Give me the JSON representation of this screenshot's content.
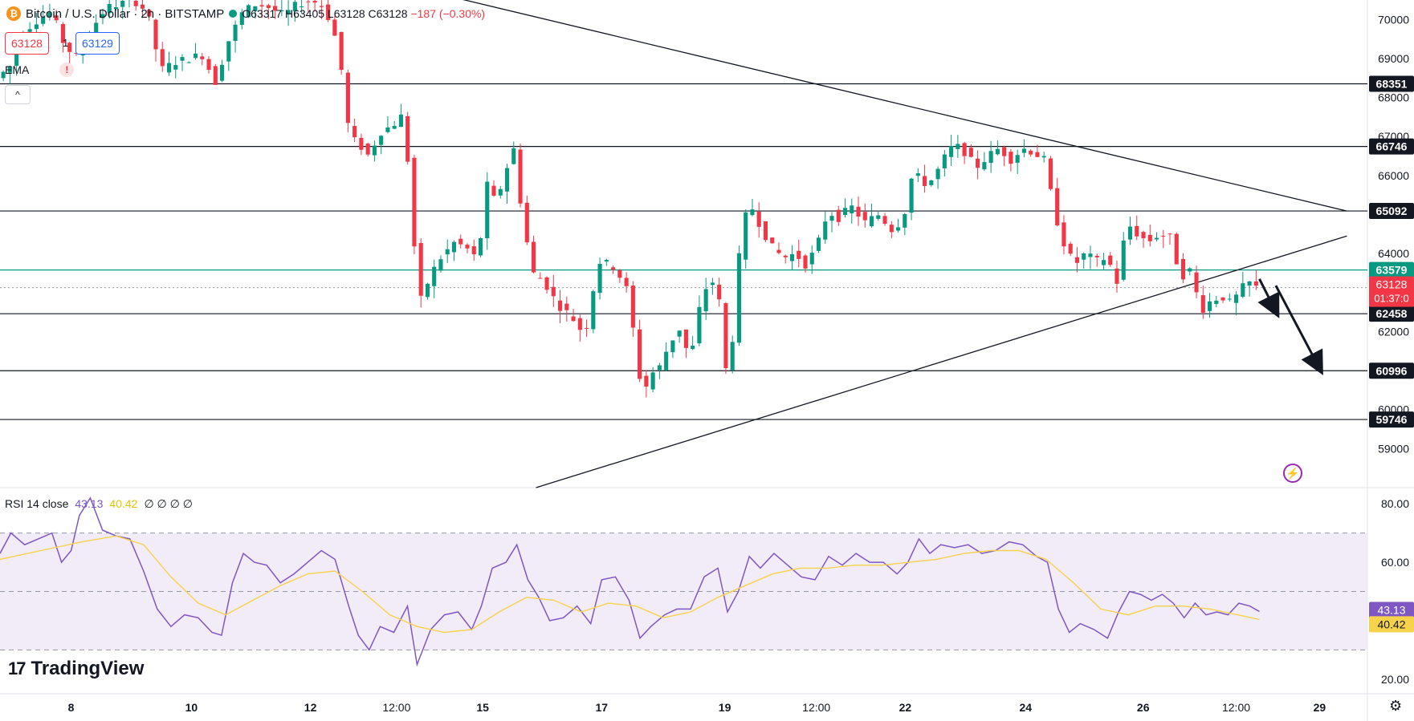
{
  "header": {
    "coin_icon": "bitcoin-icon",
    "title": "Bitcoin / U.S. Dollar · 2h · BITSTAMP",
    "ohlc": "O63317 H63405 L63128 C63128",
    "change": "−187 (−0.30%)",
    "sell_price": "63128",
    "spread": "1",
    "buy_price": "63129",
    "ema_label": "EMA",
    "warning_icon": "!",
    "collapse_icon": "^"
  },
  "rsi_legend": {
    "label": "RSI 14 close",
    "rsi": "43.13",
    "ma": "40.42",
    "extra": "∅ ∅ ∅ ∅"
  },
  "branding": {
    "logo_text": "TradingView",
    "logo_mark": "17"
  },
  "colors": {
    "up": "#089981",
    "down": "#f23645",
    "rsi": "#7e57c2",
    "rsi_ma": "#f7d24b",
    "rsi_band": "#ede7f6"
  },
  "chart_data": [
    {
      "type": "candlestick",
      "title": "Bitcoin / U.S. Dollar · 2h · BITSTAMP",
      "ylim": [
        58000,
        70500
      ],
      "y_ticks": [
        59000,
        60000,
        62000,
        64000,
        66000,
        67000,
        68000,
        69000,
        70000
      ],
      "x_ticks": [
        "8",
        "10",
        "12",
        "12:00",
        "15",
        "17",
        "19",
        "12:00",
        "22",
        "24",
        "26",
        "12:00",
        "29"
      ],
      "horizontal_levels": [
        {
          "value": 68351,
          "label": "68351"
        },
        {
          "value": 66746,
          "label": "66746"
        },
        {
          "value": 65092,
          "label": "65092"
        },
        {
          "value": 63579,
          "label": "63579",
          "color": "#089981"
        },
        {
          "value": 62458,
          "label": "62458"
        },
        {
          "value": 60996,
          "label": "60996"
        },
        {
          "value": 59746,
          "label": "59746"
        }
      ],
      "current_price": {
        "value": 63128,
        "label": "63128",
        "countdown": "01:37:0"
      },
      "trendlines": [
        {
          "name": "descending resistance",
          "from": [
            0.328,
            70600
          ],
          "to": [
            0.985,
            65090
          ]
        },
        {
          "name": "ascending support",
          "from": [
            0.392,
            58000
          ],
          "to": [
            0.985,
            64450
          ]
        }
      ],
      "arrows": [
        {
          "from": [
            0.921,
            63350
          ],
          "to": [
            0.934,
            62450
          ]
        },
        {
          "from": [
            0.933,
            63180
          ],
          "to": [
            0.966,
            60990
          ]
        }
      ],
      "price_path": [
        [
          0.0,
          68500
        ],
        [
          0.01,
          68800
        ],
        [
          0.02,
          69700
        ],
        [
          0.03,
          70000
        ],
        [
          0.04,
          70200
        ],
        [
          0.05,
          69300
        ],
        [
          0.06,
          69000
        ],
        [
          0.07,
          69800
        ],
        [
          0.08,
          70300
        ],
        [
          0.09,
          70400
        ],
        [
          0.1,
          70500
        ],
        [
          0.11,
          70200
        ],
        [
          0.12,
          68700
        ],
        [
          0.13,
          68900
        ],
        [
          0.14,
          69000
        ],
        [
          0.15,
          69100
        ],
        [
          0.16,
          68400
        ],
        [
          0.17,
          69500
        ],
        [
          0.18,
          70200
        ],
        [
          0.19,
          70400
        ],
        [
          0.2,
          70300
        ],
        [
          0.21,
          70100
        ],
        [
          0.22,
          70400
        ],
        [
          0.23,
          70500
        ],
        [
          0.24,
          70300
        ],
        [
          0.25,
          69300
        ],
        [
          0.258,
          67000
        ],
        [
          0.265,
          66800
        ],
        [
          0.272,
          66500
        ],
        [
          0.28,
          67100
        ],
        [
          0.29,
          67300
        ],
        [
          0.298,
          67600
        ],
        [
          0.305,
          64300
        ],
        [
          0.31,
          62800
        ],
        [
          0.318,
          63500
        ],
        [
          0.325,
          63900
        ],
        [
          0.335,
          64300
        ],
        [
          0.345,
          64100
        ],
        [
          0.352,
          63800
        ],
        [
          0.358,
          65800
        ],
        [
          0.365,
          65300
        ],
        [
          0.372,
          66100
        ],
        [
          0.378,
          66700
        ],
        [
          0.385,
          64800
        ],
        [
          0.392,
          63500
        ],
        [
          0.4,
          63300
        ],
        [
          0.41,
          62700
        ],
        [
          0.42,
          62400
        ],
        [
          0.43,
          61900
        ],
        [
          0.44,
          63800
        ],
        [
          0.45,
          63700
        ],
        [
          0.46,
          63200
        ],
        [
          0.468,
          61500
        ],
        [
          0.472,
          60300
        ],
        [
          0.478,
          60900
        ],
        [
          0.485,
          61100
        ],
        [
          0.492,
          61700
        ],
        [
          0.5,
          62100
        ],
        [
          0.507,
          61200
        ],
        [
          0.515,
          62800
        ],
        [
          0.522,
          63400
        ],
        [
          0.528,
          62900
        ],
        [
          0.533,
          61000
        ],
        [
          0.538,
          61800
        ],
        [
          0.545,
          64800
        ],
        [
          0.552,
          65200
        ],
        [
          0.56,
          64600
        ],
        [
          0.568,
          64100
        ],
        [
          0.576,
          63900
        ],
        [
          0.584,
          64000
        ],
        [
          0.592,
          63700
        ],
        [
          0.6,
          64200
        ],
        [
          0.608,
          65100
        ],
        [
          0.615,
          64900
        ],
        [
          0.625,
          65200
        ],
        [
          0.635,
          64800
        ],
        [
          0.645,
          65000
        ],
        [
          0.655,
          64600
        ],
        [
          0.663,
          64900
        ],
        [
          0.67,
          66100
        ],
        [
          0.678,
          65800
        ],
        [
          0.685,
          65900
        ],
        [
          0.692,
          66400
        ],
        [
          0.7,
          66800
        ],
        [
          0.708,
          66600
        ],
        [
          0.716,
          66200
        ],
        [
          0.725,
          66500
        ],
        [
          0.733,
          66700
        ],
        [
          0.742,
          66400
        ],
        [
          0.75,
          66700
        ],
        [
          0.758,
          66600
        ],
        [
          0.766,
          66400
        ],
        [
          0.774,
          65000
        ],
        [
          0.78,
          64300
        ],
        [
          0.788,
          63700
        ],
        [
          0.796,
          64000
        ],
        [
          0.804,
          63800
        ],
        [
          0.812,
          63900
        ],
        [
          0.82,
          63200
        ],
        [
          0.826,
          64800
        ],
        [
          0.834,
          64500
        ],
        [
          0.842,
          64300
        ],
        [
          0.85,
          64500
        ],
        [
          0.858,
          64400
        ],
        [
          0.866,
          63400
        ],
        [
          0.874,
          63600
        ],
        [
          0.88,
          62500
        ],
        [
          0.888,
          62800
        ],
        [
          0.896,
          62900
        ],
        [
          0.903,
          62700
        ],
        [
          0.91,
          63100
        ],
        [
          0.916,
          63250
        ],
        [
          0.921,
          63128
        ]
      ]
    },
    {
      "type": "line",
      "title": "RSI 14 close",
      "ylim": [
        15,
        85
      ],
      "y_ticks": [
        20.0,
        60.0,
        80.0
      ],
      "band": [
        30,
        70
      ],
      "midline": 50,
      "series": [
        {
          "name": "RSI",
          "points": [
            [
              0.0,
              63
            ],
            [
              0.008,
              70
            ],
            [
              0.018,
              66
            ],
            [
              0.028,
              68
            ],
            [
              0.038,
              70
            ],
            [
              0.045,
              60
            ],
            [
              0.052,
              64
            ],
            [
              0.058,
              76
            ],
            [
              0.066,
              82
            ],
            [
              0.075,
              71
            ],
            [
              0.085,
              69
            ],
            [
              0.095,
              68
            ],
            [
              0.105,
              57
            ],
            [
              0.115,
              44
            ],
            [
              0.125,
              38
            ],
            [
              0.135,
              42
            ],
            [
              0.145,
              41
            ],
            [
              0.155,
              36
            ],
            [
              0.162,
              35
            ],
            [
              0.17,
              53
            ],
            [
              0.178,
              63
            ],
            [
              0.186,
              60
            ],
            [
              0.195,
              59
            ],
            [
              0.205,
              53
            ],
            [
              0.215,
              56
            ],
            [
              0.225,
              60
            ],
            [
              0.235,
              64
            ],
            [
              0.245,
              61
            ],
            [
              0.255,
              45
            ],
            [
              0.262,
              35
            ],
            [
              0.27,
              30
            ],
            [
              0.278,
              38
            ],
            [
              0.288,
              36
            ],
            [
              0.298,
              45
            ],
            [
              0.305,
              25
            ],
            [
              0.315,
              37
            ],
            [
              0.325,
              42
            ],
            [
              0.335,
              43
            ],
            [
              0.345,
              37
            ],
            [
              0.352,
              45
            ],
            [
              0.36,
              58
            ],
            [
              0.37,
              60
            ],
            [
              0.378,
              66
            ],
            [
              0.386,
              54
            ],
            [
              0.394,
              48
            ],
            [
              0.402,
              40
            ],
            [
              0.412,
              41
            ],
            [
              0.422,
              45
            ],
            [
              0.432,
              39
            ],
            [
              0.44,
              54
            ],
            [
              0.45,
              55
            ],
            [
              0.46,
              47
            ],
            [
              0.468,
              34
            ],
            [
              0.476,
              38
            ],
            [
              0.486,
              42
            ],
            [
              0.495,
              44
            ],
            [
              0.505,
              44
            ],
            [
              0.515,
              55
            ],
            [
              0.525,
              58
            ],
            [
              0.532,
              43
            ],
            [
              0.54,
              50
            ],
            [
              0.548,
              62
            ],
            [
              0.556,
              58
            ],
            [
              0.566,
              63
            ],
            [
              0.576,
              59
            ],
            [
              0.586,
              55
            ],
            [
              0.596,
              54
            ],
            [
              0.606,
              62
            ],
            [
              0.616,
              59
            ],
            [
              0.626,
              63
            ],
            [
              0.636,
              60
            ],
            [
              0.646,
              60
            ],
            [
              0.656,
              56
            ],
            [
              0.664,
              60
            ],
            [
              0.672,
              68
            ],
            [
              0.68,
              63
            ],
            [
              0.688,
              66
            ],
            [
              0.698,
              65
            ],
            [
              0.708,
              66
            ],
            [
              0.718,
              63
            ],
            [
              0.728,
              64
            ],
            [
              0.738,
              67
            ],
            [
              0.748,
              66
            ],
            [
              0.758,
              62
            ],
            [
              0.766,
              60
            ],
            [
              0.774,
              44
            ],
            [
              0.782,
              36
            ],
            [
              0.79,
              39
            ],
            [
              0.8,
              37
            ],
            [
              0.81,
              34
            ],
            [
              0.818,
              43
            ],
            [
              0.826,
              50
            ],
            [
              0.834,
              49
            ],
            [
              0.842,
              47
            ],
            [
              0.85,
              49
            ],
            [
              0.858,
              46
            ],
            [
              0.866,
              41
            ],
            [
              0.874,
              46
            ],
            [
              0.882,
              42
            ],
            [
              0.89,
              43
            ],
            [
              0.898,
              42
            ],
            [
              0.906,
              46
            ],
            [
              0.914,
              45
            ],
            [
              0.921,
              43.13
            ]
          ]
        },
        {
          "name": "RSI-based MA",
          "points": [
            [
              0.0,
              61
            ],
            [
              0.03,
              64
            ],
            [
              0.06,
              67
            ],
            [
              0.085,
              69
            ],
            [
              0.105,
              66
            ],
            [
              0.125,
              55
            ],
            [
              0.145,
              46
            ],
            [
              0.165,
              42
            ],
            [
              0.185,
              47
            ],
            [
              0.205,
              52
            ],
            [
              0.225,
              56
            ],
            [
              0.245,
              57
            ],
            [
              0.265,
              50
            ],
            [
              0.285,
              42
            ],
            [
              0.305,
              38
            ],
            [
              0.325,
              36
            ],
            [
              0.345,
              37
            ],
            [
              0.365,
              43
            ],
            [
              0.385,
              48
            ],
            [
              0.405,
              47
            ],
            [
              0.425,
              43
            ],
            [
              0.445,
              46
            ],
            [
              0.465,
              45
            ],
            [
              0.485,
              41
            ],
            [
              0.505,
              43
            ],
            [
              0.525,
              48
            ],
            [
              0.545,
              52
            ],
            [
              0.565,
              56
            ],
            [
              0.585,
              58
            ],
            [
              0.605,
              58
            ],
            [
              0.625,
              59
            ],
            [
              0.645,
              59
            ],
            [
              0.665,
              60
            ],
            [
              0.685,
              61
            ],
            [
              0.705,
              63
            ],
            [
              0.725,
              64
            ],
            [
              0.745,
              64
            ],
            [
              0.765,
              61
            ],
            [
              0.785,
              53
            ],
            [
              0.805,
              44
            ],
            [
              0.825,
              42
            ],
            [
              0.845,
              45
            ],
            [
              0.865,
              45
            ],
            [
              0.885,
              44
            ],
            [
              0.905,
              42
            ],
            [
              0.921,
              40.42
            ]
          ]
        }
      ],
      "value_labels": [
        {
          "value": 43.13,
          "label": "43.13"
        },
        {
          "value": 40.42,
          "label": "40.42"
        }
      ]
    }
  ]
}
